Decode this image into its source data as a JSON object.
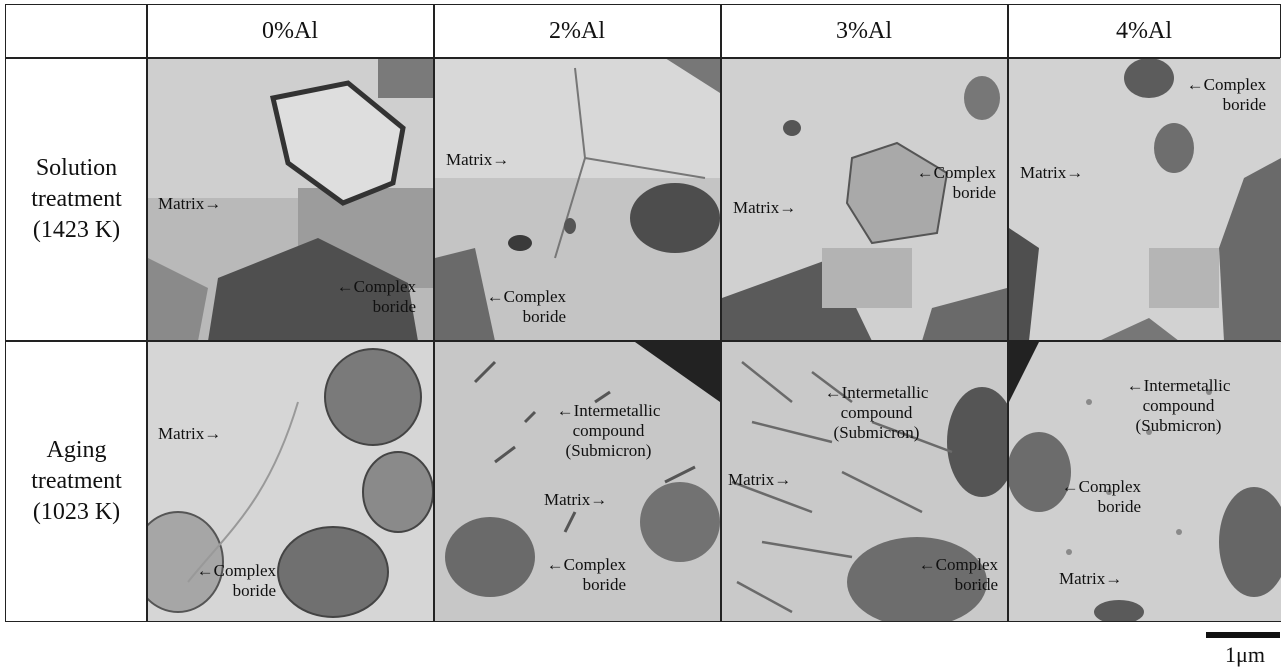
{
  "columns": [
    "0%Al",
    "2%Al",
    "3%Al",
    "4%Al"
  ],
  "rows": [
    {
      "label": "Solution\ntreatment\n(1423 K)"
    },
    {
      "label": "Aging\ntreatment\n(1023 K)"
    }
  ],
  "labels": {
    "r0c0": [
      "Matrix→",
      "←Complex\nboride"
    ],
    "r0c1": [
      "Matrix→",
      "←Complex\nboride"
    ],
    "r0c2": [
      "Matrix→",
      "←Complex\nboride"
    ],
    "r0c3": [
      "Matrix→",
      "←Complex\nboride"
    ],
    "r1c0": [
      "Matrix→",
      "←Complex\nboride"
    ],
    "r1c1": [
      "←Intermetallic\ncompound\n(Submicron)",
      "Matrix→",
      "←Complex\nboride"
    ],
    "r1c2": [
      "←Intermetallic\ncompound\n(Submicron)",
      "Matrix→",
      "←Complex\nboride"
    ],
    "r1c3": [
      "←Intermetallic\ncompound\n(Submicron)",
      "←Complex\nboride",
      "Matrix→"
    ]
  },
  "scale_bar": {
    "label": "1μm"
  },
  "colors": {
    "border": "#222222",
    "matrix": "#c8c8c8",
    "boride": "#4a4a4a"
  }
}
